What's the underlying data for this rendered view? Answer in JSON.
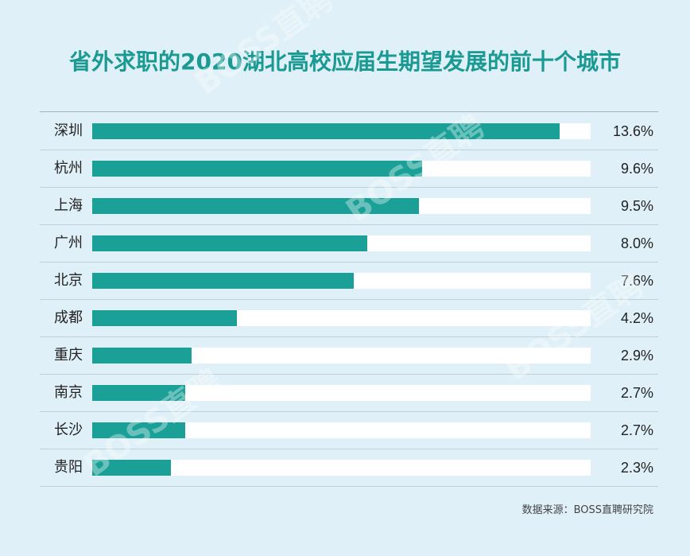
{
  "chart_data": {
    "type": "bar",
    "orientation": "horizontal",
    "title": "省外求职的2020湖北高校应届生期望发展的前十个城市",
    "categories": [
      "深圳",
      "杭州",
      "上海",
      "广州",
      "北京",
      "成都",
      "重庆",
      "南京",
      "长沙",
      "贵阳"
    ],
    "values": [
      13.6,
      9.6,
      9.5,
      8.0,
      7.6,
      4.2,
      2.9,
      2.7,
      2.7,
      2.3
    ],
    "value_labels": [
      "13.6%",
      "9.6%",
      "9.5%",
      "8.0%",
      "7.6%",
      "4.2%",
      "2.9%",
      "2.7%",
      "2.7%",
      "2.3%"
    ],
    "xlim": [
      0,
      14.5
    ],
    "grid": false,
    "bar_color": "#1ba098",
    "track_color": "#ffffff",
    "source": "数据来源：BOSS直聘研究院"
  },
  "watermark_text": "BOSS直聘"
}
